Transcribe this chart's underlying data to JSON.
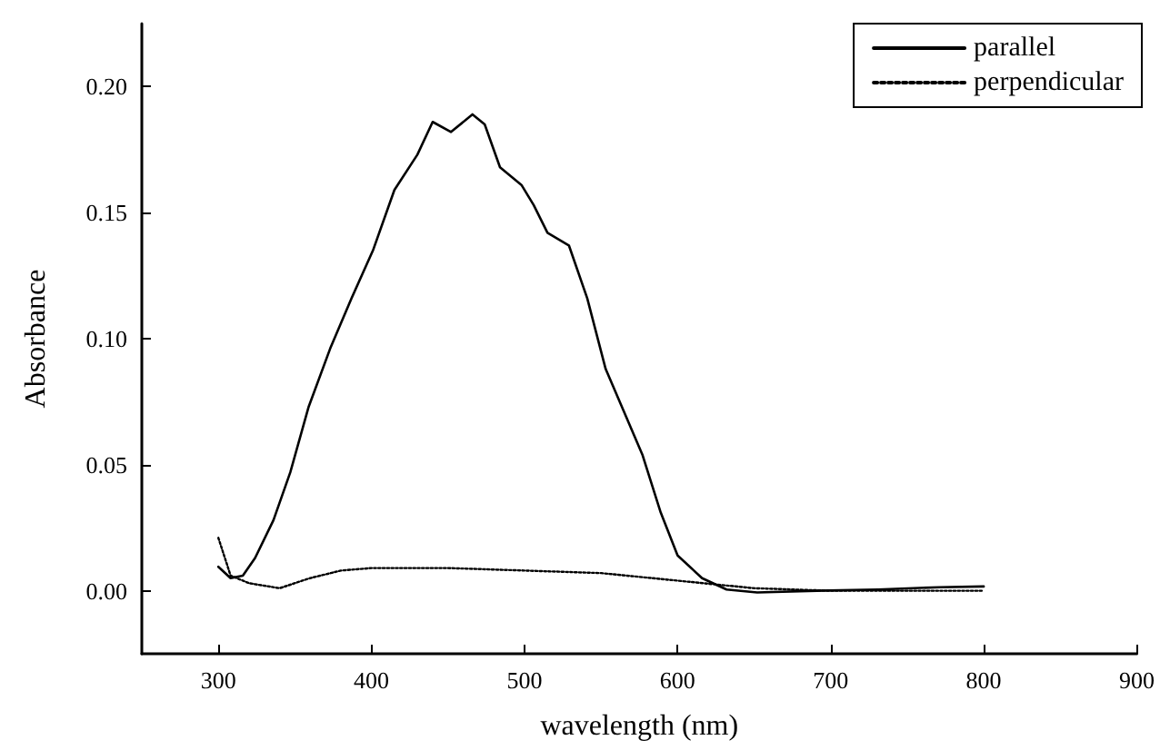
{
  "chart_data": {
    "type": "line",
    "xlabel": "wavelength (nm)",
    "ylabel": "Absorbance",
    "xlim": [
      250,
      900
    ],
    "xticks": [
      300,
      400,
      500,
      600,
      700,
      800,
      900
    ],
    "ylim": [
      -0.025,
      0.225
    ],
    "yticks": [
      {
        "value": 0,
        "label": "0.00"
      },
      {
        "value": 0.05,
        "label": "0.05"
      },
      {
        "value": 0.1,
        "label": "0.10"
      },
      {
        "value": 0.15,
        "label": "0.15"
      },
      {
        "value": 0.2,
        "label": "0.20"
      }
    ],
    "grid": false,
    "legend": "top right",
    "marker": "none",
    "series": [
      {
        "name": "parallel",
        "color": "#000000",
        "line_style": "solid",
        "x": [
          300,
          308,
          316,
          324,
          336,
          347,
          359,
          373,
          387,
          401,
          415,
          430,
          440,
          452,
          466,
          474,
          484,
          498,
          506,
          515,
          529,
          541,
          553,
          565,
          577,
          589,
          600,
          616,
          632,
          652,
          691,
          731,
          771,
          800
        ],
        "values": [
          0.0095,
          0.005,
          0.006,
          0.013,
          0.028,
          0.047,
          0.073,
          0.096,
          0.116,
          0.135,
          0.159,
          0.173,
          0.186,
          0.182,
          0.189,
          0.185,
          0.168,
          0.161,
          0.153,
          0.142,
          0.137,
          0.116,
          0.088,
          0.071,
          0.054,
          0.031,
          0.014,
          0.005,
          0.0005,
          -0.0007,
          0,
          0.0005,
          0.0014,
          0.0017
        ]
      },
      {
        "name": "perpendicular",
        "color": "#000000",
        "line_style": "dotted",
        "x": [
          300,
          308,
          320,
          340,
          360,
          380,
          400,
          450,
          500,
          550,
          600,
          650,
          700,
          800
        ],
        "values": [
          0.021,
          0.006,
          0.003,
          0.001,
          0.005,
          0.008,
          0.009,
          0.009,
          0.008,
          0.007,
          0.004,
          0.001,
          0,
          0
        ]
      }
    ]
  }
}
